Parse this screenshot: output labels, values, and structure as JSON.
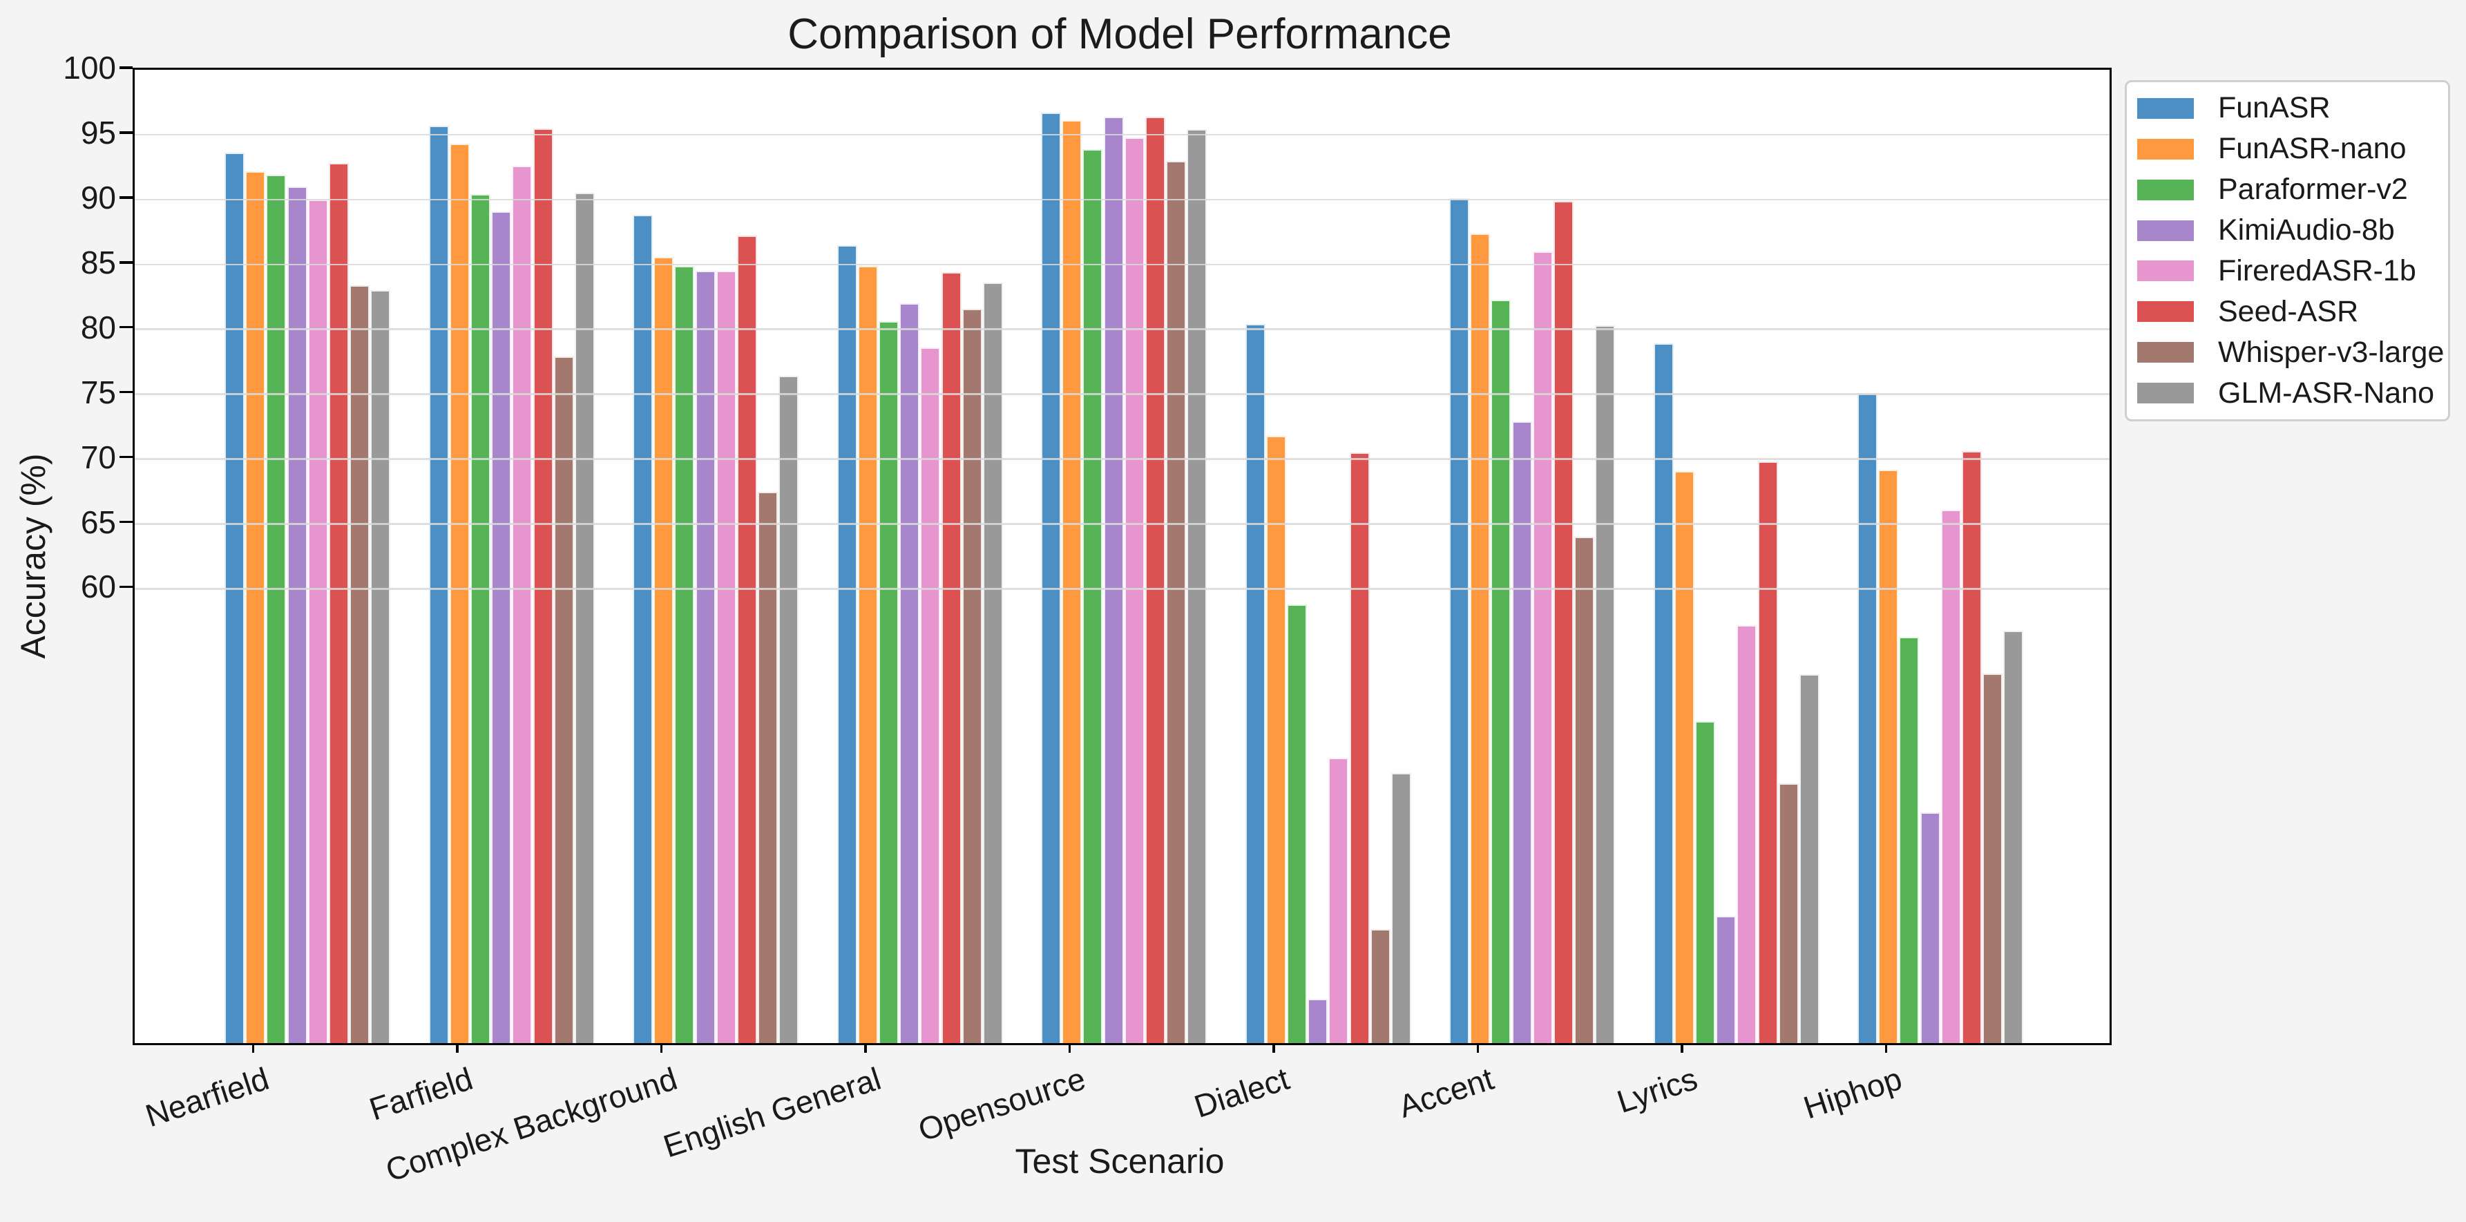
{
  "title": "Comparison of Model Performance",
  "chart_data": {
    "type": "bar",
    "title": "Comparison of Model Performance",
    "xlabel": "Test Scenario",
    "ylabel": "Accuracy (%)",
    "categories": [
      "Nearfield",
      "Farfield",
      "Complex Background",
      "English General",
      "Opensource",
      "Dialect",
      "Accent",
      "Lyrics",
      "Hiphop"
    ],
    "series": [
      {
        "name": "FunASR",
        "color": "#4C8FC4",
        "values": [
          93.6,
          95.7,
          88.8,
          86.5,
          96.7,
          80.4,
          90.1,
          78.9,
          75.1
        ]
      },
      {
        "name": "FunASR-nano",
        "color": "#FF9940",
        "values": [
          92.2,
          94.3,
          85.6,
          84.9,
          96.1,
          71.8,
          87.4,
          69.1,
          69.2
        ]
      },
      {
        "name": "Paraformer-v2",
        "color": "#56B456",
        "values": [
          91.9,
          90.4,
          84.9,
          80.6,
          93.9,
          58.8,
          82.3,
          49.8,
          56.3
        ]
      },
      {
        "name": "KimiAudio-8b",
        "color": "#A886CB",
        "values": [
          91.0,
          89.1,
          84.5,
          82.0,
          96.4,
          28.4,
          72.9,
          34.8,
          42.8
        ]
      },
      {
        "name": "FireredASR-1b",
        "color": "#E795CE",
        "values": [
          90.0,
          92.6,
          84.5,
          78.6,
          94.8,
          47.0,
          86.0,
          57.2,
          66.1
        ]
      },
      {
        "name": "Seed-ASR",
        "color": "#DC5152",
        "values": [
          92.8,
          95.5,
          87.2,
          84.4,
          96.4,
          70.5,
          89.9,
          69.8,
          70.6
        ]
      },
      {
        "name": "Whisper-v3-large",
        "color": "#A3786F",
        "values": [
          83.4,
          77.9,
          67.5,
          81.6,
          93.0,
          33.8,
          64.0,
          45.0,
          53.5
        ]
      },
      {
        "name": "GLM-ASR-Nano",
        "color": "#999999",
        "values": [
          83.0,
          90.5,
          76.4,
          83.6,
          95.4,
          45.8,
          80.3,
          53.4,
          56.8
        ]
      }
    ],
    "ylim": [
      25,
      100
    ],
    "yticks": [
      60,
      65,
      70,
      75,
      80,
      85,
      90,
      95,
      100
    ],
    "grid": "horizontal gridlines only at labeled yticks (60-100), drawn over bars",
    "legend_position": "outside upper right",
    "legend_entries": [
      "FunASR",
      "FunASR-nano",
      "Paraformer-v2",
      "KimiAudio-8b",
      "FireredASR-1b",
      "Seed-ASR",
      "Whisper-v3-large",
      "GLM-ASR-Nano"
    ],
    "bar_edge_color": "#ffffff",
    "plot_background": "#ffffff",
    "figure_background": "#f4f4f5",
    "axis_color": "#000000"
  }
}
